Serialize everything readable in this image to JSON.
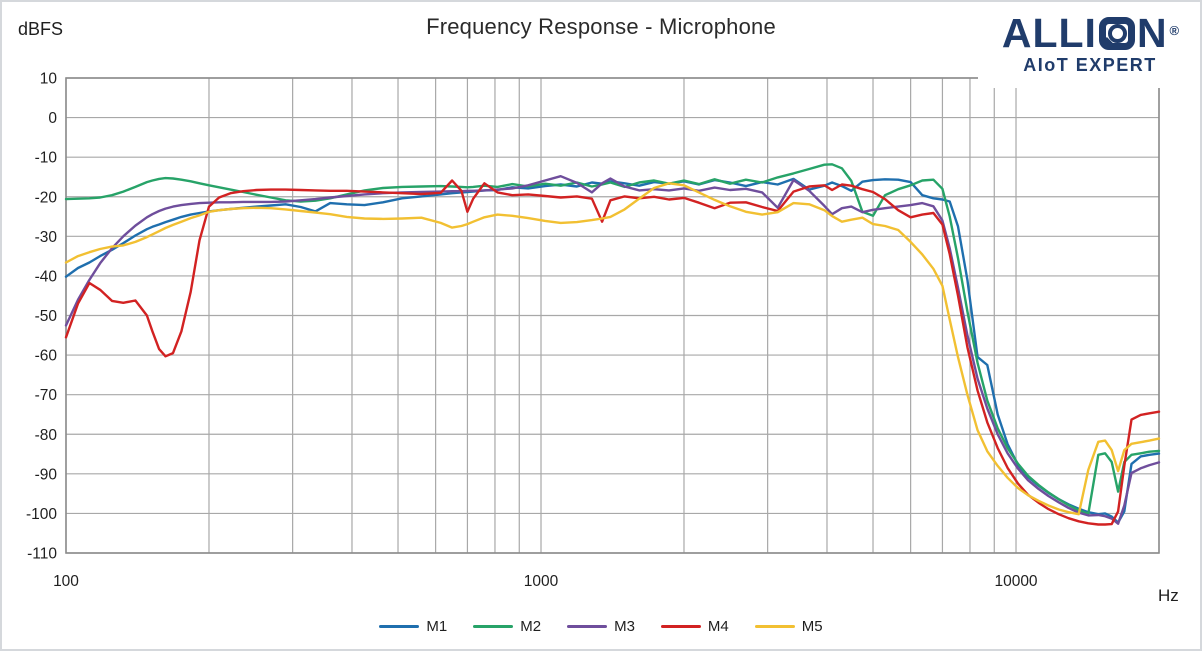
{
  "header": {
    "title": "Frequency Response - Microphone"
  },
  "axis_units": {
    "y_unit": "dBFS",
    "x_unit": "Hz"
  },
  "logo": {
    "wordmark_before_icon": "ALLI",
    "wordmark_after_icon": "N",
    "registered_mark": "®",
    "tagline": "AIoT EXPERT",
    "brand_color": "#203C6B"
  },
  "legend": [
    {
      "label": "M1",
      "color": "#1F6FAE"
    },
    {
      "label": "M2",
      "color": "#27A368"
    },
    {
      "label": "M3",
      "color": "#6F4E9C"
    },
    {
      "label": "M4",
      "color": "#D22222"
    },
    {
      "label": "M5",
      "color": "#F2C032"
    }
  ],
  "style": {
    "grid_color": "#A8A8A8",
    "border_color": "#8C8C8C",
    "text_color": "#1f1f1f",
    "line_width": 2.4
  },
  "chart_data": {
    "type": "line",
    "title": "Frequency Response - Microphone",
    "xlabel": "Hz",
    "ylabel": "dBFS",
    "x_scale": "log",
    "xlim": [
      100,
      20000
    ],
    "ylim": [
      -110,
      10
    ],
    "grid": true,
    "legend_position": "bottom-center",
    "y_ticks": [
      10,
      0,
      -10,
      -20,
      -30,
      -40,
      -50,
      -60,
      -70,
      -80,
      -90,
      -100,
      -110
    ],
    "x_ticks": [
      100,
      1000,
      10000
    ],
    "x_gridlines": [
      100,
      200,
      300,
      400,
      500,
      600,
      700,
      800,
      900,
      1000,
      2000,
      3000,
      4000,
      5000,
      6000,
      7000,
      8000,
      9000,
      10000,
      20000
    ],
    "x": [
      100,
      106,
      112,
      118,
      125,
      132,
      140,
      148,
      152,
      157,
      162,
      168,
      175,
      183,
      191,
      200,
      210,
      222,
      236,
      252,
      270,
      290,
      312,
      335,
      360,
      390,
      425,
      465,
      510,
      560,
      615,
      650,
      680,
      700,
      720,
      760,
      810,
      870,
      940,
      1020,
      1100,
      1190,
      1280,
      1345,
      1400,
      1500,
      1610,
      1730,
      1860,
      2000,
      2150,
      2320,
      2500,
      2700,
      2920,
      3150,
      3400,
      3670,
      3950,
      4100,
      4300,
      4500,
      4750,
      5000,
      5300,
      5650,
      6000,
      6350,
      6700,
      7000,
      7250,
      7550,
      7900,
      8300,
      8700,
      9150,
      9600,
      10100,
      10600,
      11150,
      11700,
      12300,
      12900,
      13550,
      14200,
      14900,
      15400,
      15900,
      16400,
      16900,
      17500,
      18300,
      19100,
      20000
    ],
    "series": [
      {
        "name": "M1",
        "color": "#1F6FAE",
        "values": [
          -40.2,
          -38,
          -36.6,
          -35,
          -33.4,
          -31.7,
          -29.8,
          -28.2,
          -27.6,
          -27,
          -26.4,
          -25.8,
          -25.1,
          -24.5,
          -24.1,
          -23.7,
          -23.4,
          -23.1,
          -22.8,
          -22.5,
          -22.2,
          -21.9,
          -22.6,
          -23.7,
          -21.6,
          -21.9,
          -22.1,
          -21.4,
          -20.4,
          -19.9,
          -19.4,
          -19.1,
          -18.9,
          -18.8,
          -18.7,
          -18.4,
          -18.3,
          -17.6,
          -17.9,
          -17.3,
          -16.9,
          -17.4,
          -16.4,
          -16.7,
          -16.1,
          -16.6,
          -17.2,
          -16.3,
          -16.7,
          -16.1,
          -16.9,
          -15.8,
          -16.4,
          -17.3,
          -16.3,
          -16.9,
          -15.5,
          -18.2,
          -17.2,
          -16.4,
          -17.3,
          -18.5,
          -16.2,
          -15.8,
          -15.6,
          -15.7,
          -16.3,
          -19.6,
          -20.4,
          -20.7,
          -21.2,
          -27.5,
          -41,
          -60.5,
          -62.5,
          -75,
          -82.5,
          -87.8,
          -90.8,
          -93,
          -94.8,
          -96.4,
          -97.7,
          -98.8,
          -99.7,
          -100.2,
          -100,
          -100.8,
          -102.3,
          -99.5,
          -87.5,
          -85.6,
          -85.2,
          -84.9
        ]
      },
      {
        "name": "M2",
        "color": "#27A368",
        "values": [
          -20.6,
          -20.5,
          -20.4,
          -20.2,
          -19.6,
          -18.7,
          -17.5,
          -16.3,
          -15.9,
          -15.5,
          -15.3,
          -15.4,
          -15.7,
          -16.1,
          -16.6,
          -17.1,
          -17.6,
          -18.2,
          -18.8,
          -19.5,
          -20.2,
          -20.9,
          -21.2,
          -21,
          -20.4,
          -19.4,
          -18.4,
          -17.8,
          -17.5,
          -17.4,
          -17.3,
          -17.4,
          -17.5,
          -17.6,
          -17.5,
          -17.2,
          -17.5,
          -16.8,
          -17.4,
          -16.7,
          -17.2,
          -16.4,
          -17.4,
          -16.9,
          -16.4,
          -17.5,
          -16.4,
          -15.9,
          -16.7,
          -15.9,
          -16.8,
          -15.6,
          -16.7,
          -15.7,
          -16.4,
          -15.1,
          -14.1,
          -13,
          -11.9,
          -11.8,
          -12.8,
          -16,
          -23.8,
          -24.8,
          -19.6,
          -18.1,
          -17.1,
          -15.9,
          -15.7,
          -18,
          -25,
          -35.5,
          -49,
          -62,
          -71.5,
          -78.5,
          -83.5,
          -87.5,
          -90.5,
          -92.8,
          -94.7,
          -96.4,
          -97.9,
          -99.2,
          -100.1,
          -85.2,
          -84.8,
          -87,
          -94.5,
          -87,
          -85.2,
          -84.8,
          -84.4,
          -84.2
        ]
      },
      {
        "name": "M3",
        "color": "#6F4E9C",
        "values": [
          -52.5,
          -46,
          -41,
          -36.8,
          -33,
          -30,
          -27.3,
          -25.2,
          -24.4,
          -23.6,
          -23,
          -22.5,
          -22.1,
          -21.8,
          -21.6,
          -21.5,
          -21.4,
          -21.4,
          -21.3,
          -21.3,
          -21.3,
          -21.2,
          -20.9,
          -20.6,
          -20.2,
          -19.8,
          -19.4,
          -19.1,
          -18.9,
          -18.8,
          -18.7,
          -18.6,
          -18.6,
          -18.5,
          -18.5,
          -18.4,
          -18.2,
          -17.9,
          -17.1,
          -15.9,
          -14.8,
          -16.5,
          -18.9,
          -16.6,
          -15.4,
          -17.4,
          -18.4,
          -18.1,
          -18.4,
          -17.9,
          -18.5,
          -17.7,
          -18.3,
          -18,
          -18.9,
          -22.8,
          -15.8,
          -18.5,
          -22.3,
          -24.4,
          -22.9,
          -22.5,
          -23.9,
          -23.3,
          -22.9,
          -22.5,
          -22.1,
          -21.6,
          -22.4,
          -26,
          -33,
          -43,
          -55,
          -66,
          -73.5,
          -80,
          -84.8,
          -88.7,
          -91.6,
          -93.8,
          -95.6,
          -97.2,
          -98.6,
          -99.8,
          -100.5,
          -100.4,
          -100.7,
          -101.3,
          -102.6,
          -98,
          -89.8,
          -88.6,
          -87.8,
          -87.1
        ]
      },
      {
        "name": "M4",
        "color": "#D22222",
        "values": [
          -55.5,
          -47,
          -41.8,
          -43.5,
          -46.3,
          -46.8,
          -46.2,
          -50,
          -54,
          -58.5,
          -60.3,
          -59.5,
          -54,
          -44,
          -31,
          -22.5,
          -20.2,
          -19.1,
          -18.6,
          -18.3,
          -18.2,
          -18.2,
          -18.3,
          -18.4,
          -18.5,
          -18.5,
          -18.7,
          -18.9,
          -19.1,
          -19.3,
          -19,
          -15.9,
          -18.5,
          -23.8,
          -20.5,
          -16.6,
          -18.9,
          -19.6,
          -19.4,
          -19.8,
          -20.2,
          -19.9,
          -20.5,
          -26.3,
          -20.9,
          -19.9,
          -20.4,
          -20,
          -20.7,
          -20.3,
          -21.5,
          -22.9,
          -21.5,
          -21.4,
          -22.6,
          -23.6,
          -18.7,
          -17.4,
          -17.1,
          -18.3,
          -16.9,
          -17.2,
          -18.1,
          -18.8,
          -20.6,
          -23.4,
          -25.2,
          -24.5,
          -24.1,
          -27,
          -34.5,
          -45,
          -58,
          -69,
          -77,
          -83.5,
          -88.5,
          -92.5,
          -95.3,
          -97.3,
          -98.9,
          -100.2,
          -101.2,
          -102,
          -102.5,
          -102.8,
          -102.8,
          -102.7,
          -99.5,
          -88,
          -76.3,
          -75.1,
          -74.7,
          -74.3
        ]
      },
      {
        "name": "M5",
        "color": "#F2C032",
        "values": [
          -36.6,
          -35,
          -34,
          -33.2,
          -32.6,
          -32.3,
          -31.4,
          -30.2,
          -29.5,
          -28.7,
          -27.9,
          -27.1,
          -26.3,
          -25.4,
          -24.7,
          -23.8,
          -23.4,
          -23.1,
          -22.9,
          -22.8,
          -22.9,
          -23.2,
          -23.6,
          -24,
          -24.4,
          -25.1,
          -25.5,
          -25.6,
          -25.5,
          -25.3,
          -26.6,
          -27.8,
          -27.4,
          -26.9,
          -26.3,
          -25.2,
          -24.5,
          -24.8,
          -25.4,
          -26.1,
          -26.6,
          -26.4,
          -25.9,
          -25.5,
          -25.1,
          -23.2,
          -20.5,
          -17.8,
          -16.6,
          -17.1,
          -18.9,
          -20.8,
          -22.4,
          -23.8,
          -24.5,
          -23.9,
          -21.6,
          -21.9,
          -23.4,
          -24.9,
          -26.3,
          -25.8,
          -25.3,
          -26.9,
          -27.4,
          -28.4,
          -31.4,
          -34.6,
          -38.2,
          -42.5,
          -51,
          -60.5,
          -70,
          -79,
          -84.3,
          -88,
          -91,
          -93.6,
          -95.4,
          -96.8,
          -98,
          -99,
          -99.7,
          -100.2,
          -89,
          -81.9,
          -81.6,
          -84,
          -89.3,
          -84,
          -82.4,
          -82,
          -81.6,
          -81.1
        ]
      }
    ]
  }
}
